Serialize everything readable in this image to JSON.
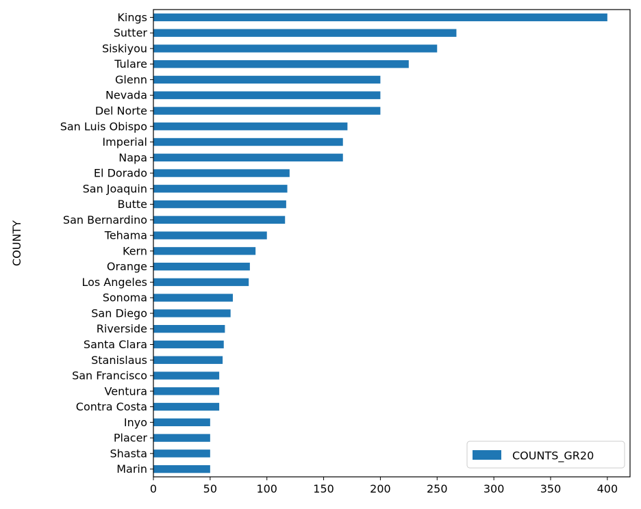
{
  "chart_data": {
    "type": "bar",
    "orientation": "horizontal",
    "ylabel": "COUNTY",
    "xlabel": "",
    "xlim": [
      0,
      420
    ],
    "xticks": [
      0,
      50,
      100,
      150,
      200,
      250,
      300,
      350,
      400
    ],
    "categories": [
      "Kings",
      "Sutter",
      "Siskiyou",
      "Tulare",
      "Glenn",
      "Nevada",
      "Del Norte",
      "San Luis Obispo",
      "Imperial",
      "Napa",
      "El Dorado",
      "San Joaquin",
      "Butte",
      "San Bernardino",
      "Tehama",
      "Kern",
      "Orange",
      "Los Angeles",
      "Sonoma",
      "San Diego",
      "Riverside",
      "Santa Clara",
      "Stanislaus",
      "San Francisco",
      "Ventura",
      "Contra Costa",
      "Inyo",
      "Placer",
      "Shasta",
      "Marin"
    ],
    "series": [
      {
        "name": "COUNTS_GR20",
        "color": "#1f77b4",
        "values": [
          400,
          267,
          250,
          225,
          200,
          200,
          200,
          171,
          167,
          167,
          120,
          118,
          117,
          116,
          100,
          90,
          85,
          84,
          70,
          68,
          63,
          62,
          61,
          58,
          58,
          58,
          50,
          50,
          50,
          50
        ]
      }
    ],
    "legend": {
      "position": "bottom-right"
    },
    "grid": false
  }
}
